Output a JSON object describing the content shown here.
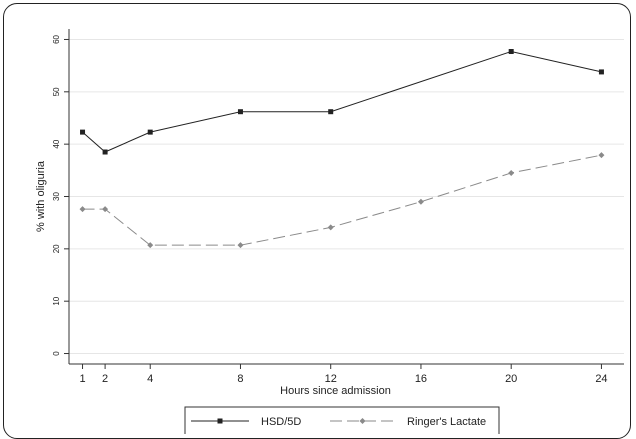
{
  "chart_data": {
    "type": "line",
    "title": "",
    "xlabel": "Hours since admission",
    "ylabel": "% with oliguria",
    "x": [
      1,
      2,
      4,
      8,
      12,
      16,
      20,
      24
    ],
    "xticks": [
      "1",
      "2",
      "4",
      "8",
      "12",
      "16",
      "20",
      "24"
    ],
    "yticks": [
      "0",
      "10",
      "20",
      "30",
      "40",
      "50",
      "60"
    ],
    "xlim": [
      0.4,
      25
    ],
    "ylim": [
      -2,
      62
    ],
    "grid": true,
    "legend_position": "bottom",
    "series": [
      {
        "name": "HSD/5D",
        "style": "solid",
        "marker": "square",
        "color": "#222222",
        "x": [
          1,
          2,
          4,
          8,
          12,
          20,
          24
        ],
        "values": [
          42.3,
          38.5,
          42.3,
          46.2,
          46.2,
          57.7,
          53.8
        ]
      },
      {
        "name": "Ringer's Lactate",
        "style": "dashed",
        "marker": "diamond",
        "color": "#8a8a8a",
        "x": [
          1,
          2,
          4,
          8,
          12,
          16,
          20,
          24
        ],
        "values": [
          27.6,
          27.6,
          20.7,
          20.7,
          24.1,
          29.0,
          34.5,
          37.9
        ]
      }
    ]
  }
}
